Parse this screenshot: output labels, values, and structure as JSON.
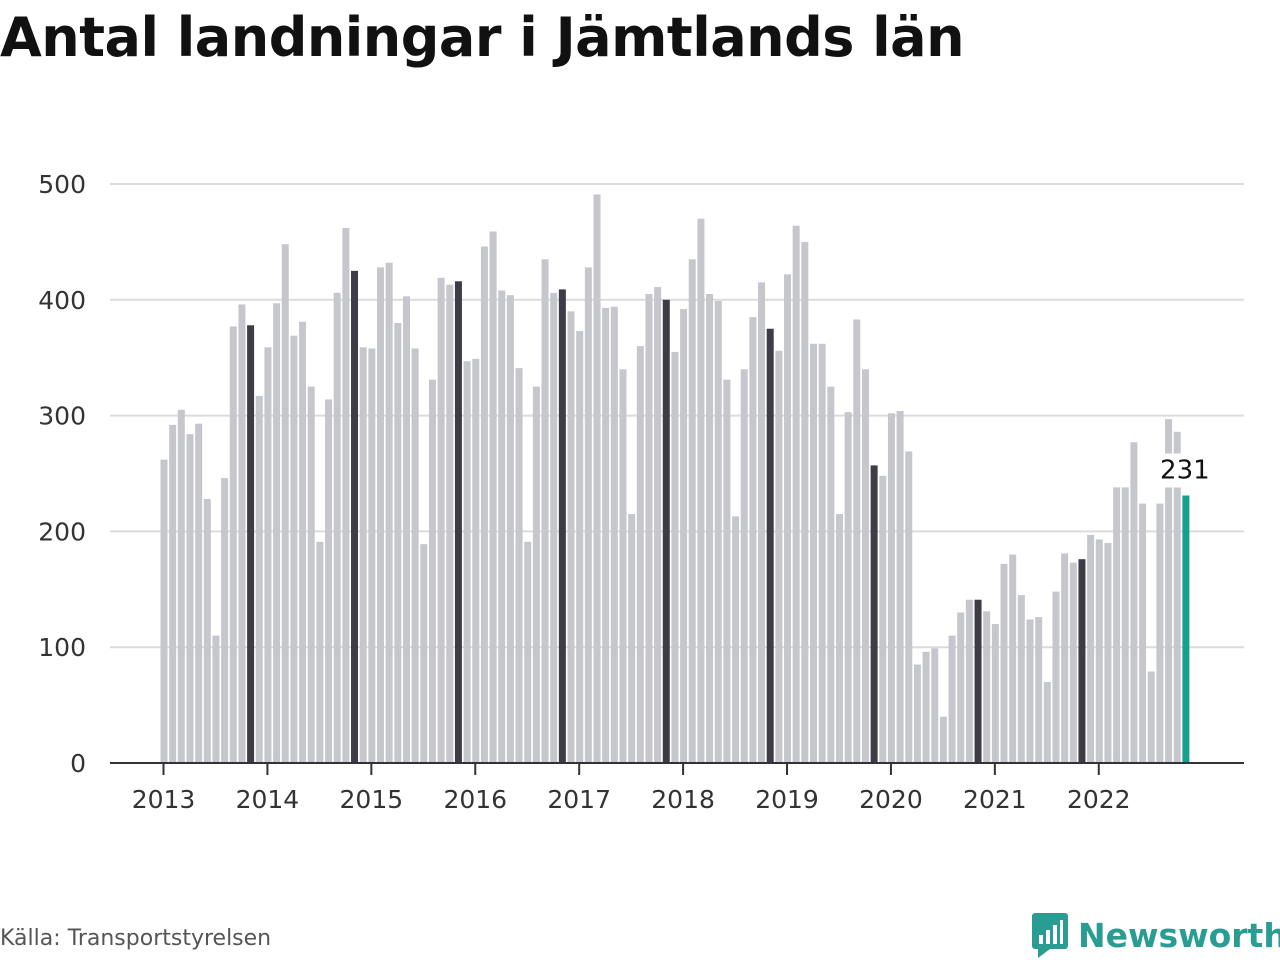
{
  "header": {
    "title": "Antal landningar i Jämtlands län"
  },
  "footer": {
    "source": "Källa: Transportstyrelsen",
    "brand": "Newsworthy"
  },
  "colors": {
    "bar": "#c6c6cd",
    "highlight": "#3d3c47",
    "accent": "#16a08f",
    "grid": "#dcdcdc",
    "axis": "#333333"
  },
  "chart_data": {
    "type": "bar",
    "title": "Antal landningar i Jämtlands län",
    "xlabel": "",
    "ylabel": "",
    "ylim": [
      0,
      500
    ],
    "yticks": [
      0,
      100,
      200,
      300,
      400,
      500
    ],
    "year_labels": [
      "2013",
      "2014",
      "2015",
      "2016",
      "2017",
      "2018",
      "2019",
      "2020",
      "2021",
      "2022"
    ],
    "start": "2013-01",
    "highlight_month": "november",
    "values": [
      262,
      292,
      305,
      284,
      293,
      228,
      110,
      246,
      377,
      396,
      378,
      317,
      359,
      397,
      448,
      369,
      381,
      325,
      191,
      314,
      406,
      462,
      425,
      359,
      358,
      428,
      432,
      380,
      403,
      358,
      189,
      331,
      419,
      413,
      416,
      347,
      349,
      446,
      459,
      408,
      404,
      341,
      191,
      325,
      435,
      406,
      409,
      390,
      373,
      428,
      491,
      393,
      394,
      340,
      215,
      360,
      405,
      411,
      400,
      355,
      392,
      435,
      470,
      405,
      399,
      331,
      213,
      340,
      385,
      415,
      375,
      356,
      422,
      464,
      450,
      362,
      362,
      325,
      215,
      303,
      383,
      340,
      257,
      248,
      302,
      304,
      269,
      85,
      96,
      99,
      40,
      110,
      130,
      141,
      141,
      131,
      120,
      172,
      180,
      145,
      124,
      126,
      70,
      148,
      181,
      173,
      176,
      197,
      193,
      190,
      238,
      238,
      277,
      224,
      79,
      224,
      297,
      286,
      231
    ],
    "last_value_label": "231"
  }
}
